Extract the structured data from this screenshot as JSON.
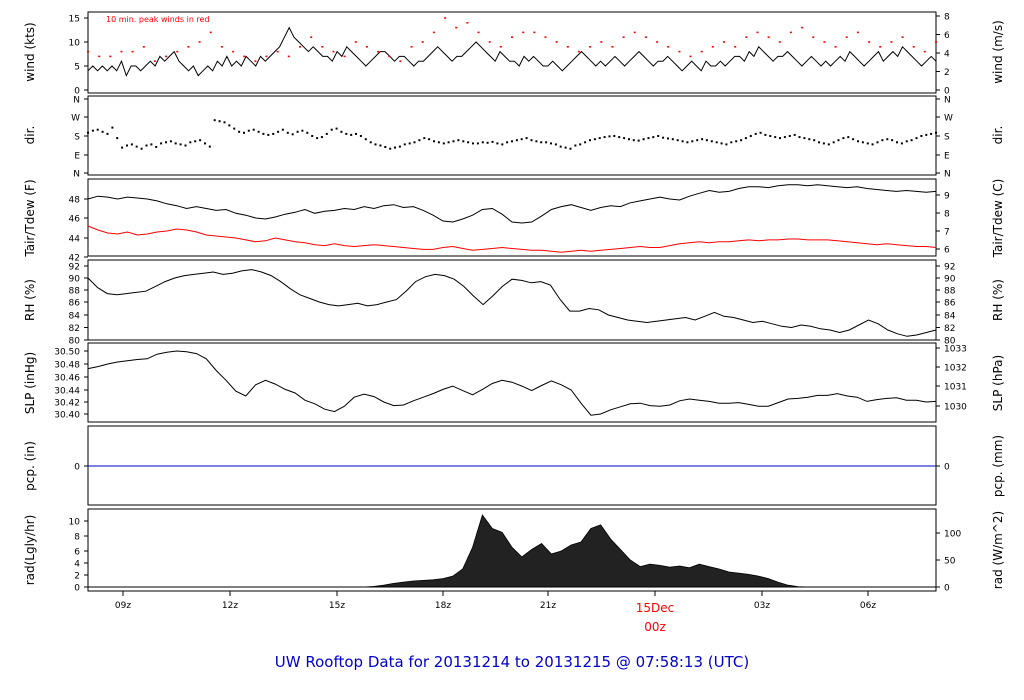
{
  "footer_title": "UW Rooftop Data for 20131214  to  20131215 @ 07:58:13  (UTC)",
  "colors": {
    "axis": "#000000",
    "series": "#000000",
    "highlight": "#ff0000",
    "precip": "#0000cc",
    "title": "#0000cc"
  },
  "time_axis": {
    "ticks": [
      "09z",
      "12z",
      "15z",
      "18z",
      "21z",
      "15Dec",
      "03z",
      "06z"
    ],
    "highlight_label": "00z"
  },
  "chart_data": [
    {
      "type": "line",
      "ylabel_left": "wind (kts)",
      "ylabel_right": "wind (m/s)",
      "yticks_left": [
        "0",
        "5",
        "10",
        "15"
      ],
      "yticks_right": [
        "0",
        "2",
        "4",
        "6",
        "8"
      ],
      "annotation": "10 min. peak winds in red",
      "ylim": [
        0,
        15.5
      ],
      "series": [
        {
          "values": [
            4,
            5,
            4,
            5,
            4,
            5,
            4,
            6,
            3,
            5,
            5,
            4,
            5,
            6,
            5,
            7,
            6,
            7,
            8,
            6,
            5,
            4,
            5,
            3,
            4,
            5,
            4,
            6,
            5,
            7,
            5,
            6,
            5,
            7,
            6,
            5,
            7,
            6,
            7,
            8,
            9,
            11,
            13,
            11,
            10,
            9,
            8,
            9,
            8,
            7,
            7,
            6,
            8,
            7,
            9,
            8,
            7,
            6,
            5,
            6,
            7,
            8,
            8,
            7,
            6,
            7,
            7,
            6,
            5,
            6,
            6,
            7,
            8,
            9,
            8,
            7,
            6,
            7,
            7,
            8,
            9,
            10,
            9,
            8,
            7,
            6,
            8,
            7,
            6,
            6,
            5,
            7,
            6,
            7,
            6,
            5,
            5,
            6,
            5,
            4,
            5,
            6,
            7,
            8,
            7,
            6,
            5,
            6,
            5,
            6,
            7,
            6,
            5,
            6,
            7,
            8,
            7,
            6,
            5,
            6,
            6,
            7,
            6,
            5,
            4,
            5,
            6,
            5,
            4,
            6,
            5,
            5,
            6,
            5,
            6,
            7,
            7,
            6,
            8,
            7,
            9,
            8,
            7,
            6,
            7,
            7,
            8,
            7,
            6,
            5,
            6,
            7,
            6,
            5,
            6,
            5,
            6,
            7,
            6,
            8,
            7,
            6,
            5,
            6,
            7,
            8,
            6,
            7,
            8,
            7,
            9,
            8,
            7,
            6,
            5,
            6,
            7,
            6
          ]
        },
        {
          "name": "10 min. peak winds in red",
          "values": [
            8,
            7,
            7,
            8,
            8,
            9,
            6,
            7,
            8,
            9,
            10,
            12,
            9,
            8,
            7,
            6,
            7,
            8,
            7,
            9,
            11,
            9,
            8,
            7,
            10,
            9,
            8,
            7,
            6,
            9,
            10,
            12,
            15,
            13,
            14,
            12,
            10,
            9,
            11,
            12,
            12,
            11,
            10,
            9,
            8,
            9,
            10,
            9,
            11,
            12,
            11,
            10,
            9,
            8,
            7,
            8,
            9,
            10,
            9,
            11,
            12,
            11,
            10,
            12,
            13,
            11,
            10,
            9,
            11,
            12,
            10,
            9,
            10,
            11,
            9,
            8,
            10
          ]
        }
      ]
    },
    {
      "type": "scatter",
      "ylabel_left": "dir.",
      "ylabel_right": "dir.",
      "yticks_left": [
        "N",
        "E",
        "S",
        "W",
        "N"
      ],
      "yticks_right": [
        "N",
        "E",
        "S",
        "W",
        "N"
      ],
      "ylim": [
        0,
        360
      ],
      "series": [
        {
          "values": [
            195,
            205,
            210,
            200,
            190,
            220,
            170,
            125,
            135,
            140,
            130,
            120,
            135,
            140,
            128,
            145,
            150,
            155,
            145,
            140,
            135,
            150,
            155,
            160,
            145,
            130,
            255,
            250,
            245,
            230,
            215,
            200,
            195,
            205,
            210,
            200,
            190,
            185,
            190,
            200,
            210,
            195,
            188,
            200,
            205,
            195,
            180,
            170,
            175,
            190,
            210,
            215,
            200,
            190,
            185,
            190,
            180,
            165,
            150,
            140,
            135,
            128,
            120,
            125,
            130,
            140,
            145,
            150,
            160,
            170,
            165,
            155,
            150,
            145,
            150,
            155,
            160,
            155,
            150,
            145,
            145,
            150,
            148,
            152,
            145,
            140,
            150,
            155,
            160,
            165,
            170,
            160,
            155,
            150,
            150,
            145,
            140,
            130,
            125,
            120,
            135,
            140,
            150,
            160,
            165,
            170,
            175,
            178,
            180,
            175,
            170,
            165,
            160,
            158,
            165,
            170,
            175,
            180,
            172,
            168,
            165,
            160,
            155,
            150,
            155,
            160,
            165,
            160,
            155,
            150,
            145,
            140,
            150,
            155,
            160,
            170,
            180,
            190,
            195,
            185,
            180,
            175,
            170,
            175,
            180,
            185,
            175,
            170,
            165,
            160,
            150,
            145,
            140,
            150,
            160,
            170,
            175,
            165,
            155,
            150,
            145,
            140,
            150,
            160,
            165,
            160,
            150,
            145,
            155,
            160,
            170,
            180,
            185,
            190,
            195
          ]
        }
      ]
    },
    {
      "type": "line",
      "ylabel_left": "Tair/Tdew (F)",
      "ylabel_right": "Tair/Tdew (C)",
      "yticks_left": [
        "42",
        "44",
        "46",
        "48"
      ],
      "yticks_right": [
        "6",
        "7",
        "8",
        "9"
      ],
      "ylim": [
        42,
        49.5
      ],
      "series": [
        {
          "values": [
            48.0,
            48.3,
            48.2,
            48.0,
            48.2,
            48.1,
            48.0,
            47.8,
            47.5,
            47.3,
            47.0,
            47.2,
            47.0,
            46.8,
            46.9,
            46.5,
            46.3,
            46.0,
            45.9,
            46.1,
            46.4,
            46.6,
            46.9,
            46.5,
            46.7,
            46.8,
            47.0,
            46.9,
            47.2,
            47.0,
            47.3,
            47.4,
            47.1,
            47.2,
            46.8,
            46.3,
            45.7,
            45.6,
            45.9,
            46.3,
            46.9,
            47.0,
            46.4,
            45.6,
            45.5,
            45.6,
            46.2,
            46.9,
            47.2,
            47.4,
            47.1,
            46.8,
            47.1,
            47.3,
            47.2,
            47.6,
            47.8,
            48.0,
            48.2,
            48.0,
            47.9,
            48.3,
            48.6,
            48.9,
            48.7,
            48.8,
            49.1,
            49.3,
            49.3,
            49.2,
            49.4,
            49.5,
            49.5,
            49.4,
            49.5,
            49.4,
            49.3,
            49.2,
            49.3,
            49.1,
            49.0,
            48.9,
            48.8,
            48.9,
            48.8,
            48.7,
            48.8
          ]
        },
        {
          "values": [
            45.2,
            44.8,
            44.5,
            44.4,
            44.6,
            44.3,
            44.4,
            44.6,
            44.7,
            44.9,
            44.8,
            44.6,
            44.3,
            44.2,
            44.1,
            44.0,
            43.8,
            43.6,
            43.7,
            44.0,
            43.8,
            43.6,
            43.5,
            43.3,
            43.2,
            43.4,
            43.2,
            43.1,
            43.2,
            43.3,
            43.2,
            43.1,
            43.0,
            42.9,
            42.8,
            42.8,
            43.0,
            43.1,
            42.9,
            42.7,
            42.8,
            42.9,
            43.0,
            42.9,
            42.8,
            42.7,
            42.7,
            42.6,
            42.5,
            42.6,
            42.7,
            42.6,
            42.7,
            42.8,
            42.9,
            43.0,
            43.1,
            43.0,
            43.0,
            43.2,
            43.4,
            43.5,
            43.6,
            43.5,
            43.6,
            43.6,
            43.7,
            43.8,
            43.7,
            43.8,
            43.8,
            43.9,
            43.9,
            43.8,
            43.8,
            43.8,
            43.7,
            43.6,
            43.5,
            43.4,
            43.3,
            43.4,
            43.3,
            43.2,
            43.1,
            43.1,
            43.0
          ]
        }
      ]
    },
    {
      "type": "line",
      "ylabel_left": "RH (%)",
      "ylabel_right": "RH (%)",
      "yticks_left": [
        "80",
        "82",
        "84",
        "86",
        "88",
        "90",
        "92"
      ],
      "yticks_right": [
        "80",
        "82",
        "84",
        "86",
        "88",
        "90",
        "92"
      ],
      "ylim": [
        80,
        92
      ],
      "series": [
        {
          "values": [
            90.0,
            88.4,
            87.4,
            87.2,
            87.4,
            87.6,
            87.8,
            88.6,
            89.4,
            90.0,
            90.4,
            90.6,
            90.8,
            91.0,
            90.6,
            90.8,
            91.2,
            91.4,
            91.0,
            90.4,
            89.4,
            88.2,
            87.2,
            86.6,
            86.0,
            85.6,
            85.4,
            85.6,
            85.8,
            85.4,
            85.6,
            86.0,
            86.4,
            87.8,
            89.4,
            90.2,
            90.6,
            90.4,
            89.8,
            88.6,
            87.0,
            85.6,
            87.0,
            88.6,
            89.8,
            89.6,
            89.2,
            89.4,
            88.8,
            86.4,
            84.6,
            84.6,
            85.0,
            84.8,
            84.0,
            83.6,
            83.2,
            83.0,
            82.8,
            83.0,
            83.2,
            83.4,
            83.6,
            83.2,
            83.8,
            84.4,
            83.8,
            83.6,
            83.2,
            82.8,
            83.0,
            82.6,
            82.2,
            82.0,
            82.4,
            82.2,
            81.8,
            81.6,
            81.2,
            81.6,
            82.4,
            83.2,
            82.6,
            81.6,
            81.0,
            80.6,
            80.8,
            81.2,
            81.6
          ]
        }
      ]
    },
    {
      "type": "line",
      "ylabel_left": "SLP (inHg)",
      "ylabel_right": "SLP (hPa)",
      "yticks_left": [
        "30.40",
        "30.42",
        "30.44",
        "30.46",
        "30.48",
        "30.50"
      ],
      "yticks_right": [
        "1030",
        "1031",
        "1032",
        "1033"
      ],
      "ylim": [
        30.39,
        30.51
      ],
      "series": [
        {
          "values": [
            30.473,
            30.476,
            30.48,
            30.483,
            30.485,
            30.487,
            30.488,
            30.495,
            30.498,
            30.5,
            30.499,
            30.496,
            30.488,
            30.47,
            30.455,
            30.438,
            30.43,
            30.448,
            30.455,
            30.449,
            30.441,
            30.435,
            30.423,
            30.417,
            30.408,
            30.404,
            30.413,
            30.428,
            30.433,
            30.429,
            30.42,
            30.414,
            30.415,
            30.422,
            30.428,
            30.434,
            30.441,
            30.446,
            30.439,
            30.432,
            30.441,
            30.45,
            30.455,
            30.452,
            30.446,
            30.439,
            30.447,
            30.454,
            30.448,
            30.44,
            30.418,
            30.398,
            30.4,
            30.407,
            30.412,
            30.417,
            30.418,
            30.414,
            30.413,
            30.415,
            30.422,
            30.425,
            30.423,
            30.421,
            30.418,
            30.418,
            30.419,
            30.416,
            30.413,
            30.413,
            30.419,
            30.425,
            30.426,
            30.428,
            30.431,
            30.431,
            30.434,
            30.43,
            30.428,
            30.421,
            30.424,
            30.426,
            30.427,
            30.423,
            30.423,
            30.42,
            30.421
          ]
        }
      ]
    },
    {
      "type": "line",
      "ylabel_left": "pcp. (in)",
      "ylabel_right": "pcp. (mm)",
      "yticks_left": [
        "0"
      ],
      "yticks_right": [
        "0"
      ],
      "ylim": [
        -1,
        1
      ],
      "series": [
        {
          "values": [
            0,
            0
          ]
        }
      ]
    },
    {
      "type": "area",
      "ylabel_left": "rad(Lgly/hr)",
      "ylabel_right": "rad (W/m^2)",
      "yticks_left": [
        "0",
        "2",
        "4",
        "6",
        "8",
        "10"
      ],
      "yticks_right": [
        "0",
        "50",
        "100"
      ],
      "ylim": [
        0,
        11.5
      ],
      "series": [
        {
          "values": [
            0,
            0,
            0,
            0,
            0,
            0,
            0,
            0,
            0,
            0,
            0,
            0,
            0,
            0,
            0,
            0,
            0,
            0,
            0,
            0,
            0,
            0,
            0,
            0,
            0,
            0,
            0,
            0,
            0,
            0.1,
            0.3,
            0.6,
            0.8,
            1.0,
            1.1,
            1.2,
            1.4,
            1.8,
            3.0,
            6.5,
            10.8,
            9.0,
            8.5,
            6.5,
            5.0,
            6.2,
            7.0,
            5.5,
            6.0,
            6.8,
            7.2,
            9.0,
            9.5,
            7.6,
            6.2,
            4.5,
            3.4,
            3.8,
            3.6,
            3.3,
            3.5,
            3.2,
            3.8,
            3.4,
            3.0,
            2.5,
            2.3,
            2.1,
            1.8,
            1.4,
            0.8,
            0.3,
            0.05,
            0,
            0,
            0,
            0,
            0,
            0,
            0,
            0,
            0,
            0,
            0,
            0,
            0,
            0
          ]
        }
      ]
    }
  ]
}
